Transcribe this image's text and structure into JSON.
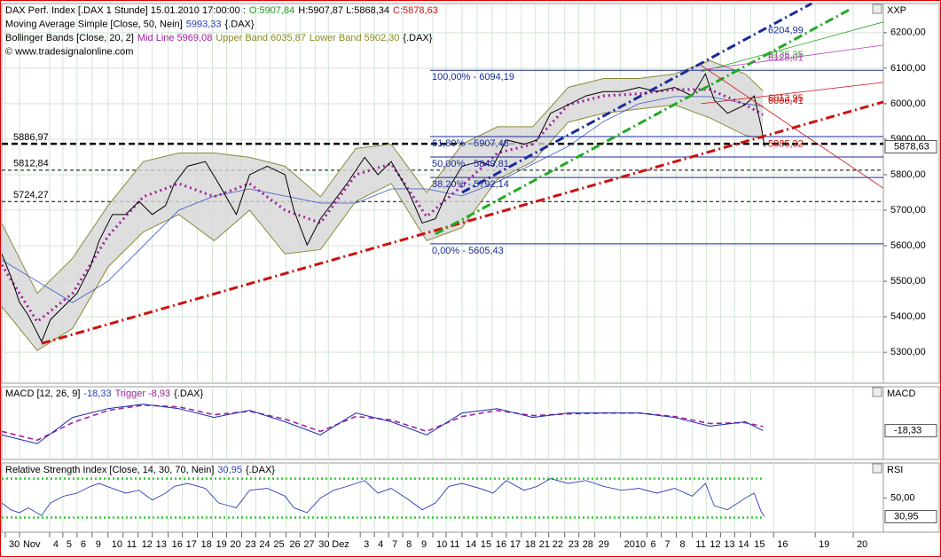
{
  "chart_data": [
    {
      "type": "line",
      "header": [
        [
          {
            "text": "DAX Perf. Index [.DAX  1 Stunde] 15.01.2010 17:00:00 :",
            "color": "#000000"
          },
          {
            "text": "O:5907,84",
            "color": "#1a9a1a"
          },
          {
            "text": "H:5907,87 L:5868,34",
            "color": "#000000"
          },
          {
            "text": "C:5878,63",
            "color": "#cc1111"
          }
        ],
        [
          {
            "text": "Moving Average Simple [Close, 50, Nein]",
            "color": "#000000"
          },
          {
            "text": "5993,33",
            "color": "#2a40b8"
          },
          {
            "text": "{.DAX}",
            "color": "#000000"
          }
        ],
        [
          {
            "text": "Bollinger Bands [Close, 20, 2]",
            "color": "#000000"
          },
          {
            "text": "Mid Line 5969,08",
            "color": "#a0209c"
          },
          {
            "text": "Upper Band 6035,87",
            "color": "#8a8a20"
          },
          {
            "text": "Lower Band 5902,30",
            "color": "#8a8a20"
          },
          {
            "text": "{.DAX}",
            "color": "#000000"
          }
        ],
        [
          {
            "text": "© www.tradesignalonline.com",
            "color": "#000000"
          }
        ]
      ],
      "axis_title": "XXP",
      "xlim": [
        0,
        996
      ],
      "ylim": [
        5213,
        6282
      ],
      "yticks": [
        {
          "value": 5300,
          "label": "5300,00"
        },
        {
          "value": 5400,
          "label": "5400,00"
        },
        {
          "value": 5500,
          "label": "5500,00"
        },
        {
          "value": 5600,
          "label": "5600,00"
        },
        {
          "value": 5700,
          "label": "5700,00"
        },
        {
          "value": 5800,
          "label": "5800,00"
        },
        {
          "value": 5900,
          "label": "5900,00"
        },
        {
          "value": 6000,
          "label": "6000,00"
        },
        {
          "value": 6100,
          "label": "6100,00"
        },
        {
          "value": 6200,
          "label": "6200,00"
        }
      ],
      "grid": true,
      "series": [
        {
          "style": "band",
          "color": "#8a8a3c",
          "fill": "#d6d6d6",
          "x": [
            0,
            40,
            80,
            120,
            160,
            200,
            240,
            280,
            320,
            360,
            400,
            440,
            480,
            520,
            560,
            600,
            640,
            680,
            720,
            760,
            800,
            840,
            860
          ],
          "upper": [
            5663,
            5466,
            5565,
            5713,
            5837,
            5861,
            5861,
            5849,
            5824,
            5738,
            5874,
            5886,
            5750,
            5886,
            5935,
            5935,
            6046,
            6071,
            6071,
            6084,
            6121,
            6084,
            6036
          ],
          "lower": [
            5429,
            5305,
            5367,
            5540,
            5639,
            5688,
            5614,
            5700,
            5577,
            5589,
            5725,
            5775,
            5614,
            5651,
            5787,
            5837,
            5948,
            5973,
            5985,
            5997,
            5960,
            5911,
            5902
          ]
        },
        {
          "style": "thin",
          "color": "#3a55c8",
          "x": [
            0,
            40,
            80,
            120,
            160,
            200,
            240,
            280,
            320,
            360,
            400,
            440,
            480,
            520,
            560,
            600,
            640,
            680,
            720,
            760,
            800,
            840,
            860
          ],
          "values": [
            5560,
            5500,
            5440,
            5500,
            5600,
            5700,
            5740,
            5760,
            5740,
            5720,
            5720,
            5760,
            5760,
            5740,
            5780,
            5830,
            5880,
            5950,
            6000,
            6020,
            6020,
            6000,
            5993
          ]
        },
        {
          "style": "dotted",
          "color": "#a0209c",
          "x": [
            0,
            40,
            80,
            120,
            160,
            200,
            240,
            280,
            320,
            360,
            400,
            440,
            480,
            520,
            560,
            600,
            640,
            680,
            720,
            760,
            800,
            840,
            860
          ],
          "values": [
            5546,
            5386,
            5466,
            5627,
            5738,
            5775,
            5738,
            5775,
            5700,
            5664,
            5800,
            5831,
            5682,
            5769,
            5861,
            5886,
            5997,
            6022,
            6028,
            6040,
            6040,
            5997,
            5969
          ]
        },
        {
          "style": "solid",
          "color": "#000000",
          "last_label": "5878,63",
          "x": [
            0,
            10,
            20,
            30,
            45,
            55,
            70,
            85,
            100,
            110,
            125,
            140,
            155,
            170,
            185,
            195,
            210,
            230,
            245,
            265,
            280,
            300,
            320,
            330,
            345,
            360,
            375,
            390,
            410,
            425,
            440,
            460,
            475,
            490,
            505,
            520,
            540,
            555,
            570,
            590,
            605,
            620,
            640,
            660,
            680,
            700,
            720,
            740,
            760,
            780,
            795,
            805,
            820,
            840,
            850,
            858,
            862
          ],
          "values": [
            5577,
            5515,
            5441,
            5404,
            5330,
            5392,
            5429,
            5466,
            5540,
            5614,
            5688,
            5688,
            5725,
            5688,
            5713,
            5775,
            5824,
            5837,
            5775,
            5688,
            5800,
            5824,
            5800,
            5700,
            5602,
            5676,
            5725,
            5775,
            5849,
            5800,
            5837,
            5750,
            5664,
            5676,
            5762,
            5824,
            5837,
            5824,
            5898,
            5886,
            5898,
            5973,
            5997,
            6022,
            6034,
            6034,
            6046,
            6034,
            6046,
            6022,
            6084,
            6010,
            5973,
            5997,
            6022,
            5935,
            5878.63
          ]
        }
      ],
      "levels": [
        {
          "value": 5886.97,
          "label": "5886,97",
          "style": "thick"
        },
        {
          "value": 5812.84,
          "label": "5812,84",
          "style": "thin"
        },
        {
          "value": 5724.27,
          "label": "5724,27",
          "style": "thin"
        }
      ],
      "fibonacci": {
        "x": [
          484,
          996
        ],
        "color": "#1a2b9c",
        "levels": [
          {
            "value": 6094.19,
            "label": "100,00% - 6094,19"
          },
          {
            "value": 5907.48,
            "label": "61,80% - 5907,48"
          },
          {
            "value": 5849.81,
            "label": "50,00% - 5849,81"
          },
          {
            "value": 5792.14,
            "label": "38,20% - 5792,14"
          },
          {
            "value": 5605.43,
            "label": "0,00% - 5605,43"
          }
        ]
      },
      "trendlines": [
        {
          "color": "#cc1111",
          "style": "thick",
          "x": [
            45,
            996
          ],
          "values": [
            5325,
            6005
          ]
        },
        {
          "color": "#22aa22",
          "style": "thick",
          "x": [
            490,
            960
          ],
          "values": [
            5633,
            6268
          ]
        },
        {
          "color": "#1a2b9c",
          "style": "thick",
          "x": [
            520,
            915
          ],
          "values": [
            5750,
            6282
          ]
        },
        {
          "color": "#22aa22",
          "style": "thin",
          "x": [
            790,
            996
          ],
          "values": [
            6090,
            6230
          ]
        },
        {
          "color": "#c040c0",
          "style": "thin",
          "x": [
            790,
            996
          ],
          "values": [
            6095,
            6165
          ]
        },
        {
          "color": "#cc1111",
          "style": "plain",
          "x": [
            790,
            996
          ],
          "values": [
            6108,
            5762
          ]
        },
        {
          "color": "#cc1111",
          "style": "thin",
          "x": [
            790,
            996
          ],
          "values": [
            6000,
            6060
          ]
        }
      ],
      "annotations": [
        {
          "value": 6204.99,
          "label": "6204,99",
          "color": "#1a2b9c"
        },
        {
          "value": 6136.35,
          "label": "6136,35",
          "color": "#22aa22"
        },
        {
          "value": 6128.01,
          "label": "6128,01",
          "color": "#c040c0"
        },
        {
          "value": 6013.95,
          "label": "6013,95",
          "color": "#cc1111"
        },
        {
          "value": 6006.41,
          "label": "6006,41",
          "color": "#cc1111"
        },
        {
          "value": 5885.32,
          "label": "5885,32",
          "color": "#cc1111"
        }
      ]
    },
    {
      "type": "line",
      "header": [
        [
          {
            "text": "MACD [12, 26, 9]",
            "color": "#000000"
          },
          {
            "text": "-18,33",
            "color": "#2a40b8"
          },
          {
            "text": "Trigger -8,93",
            "color": "#a0209c"
          },
          {
            "text": "{.DAX}",
            "color": "#000000"
          }
        ]
      ],
      "axis_title": "MACD",
      "xlim": [
        0,
        996
      ],
      "ylim": [
        -84,
        82
      ],
      "series": [
        {
          "style": "dashed",
          "color": "#a0209c",
          "x": [
            0,
            40,
            80,
            120,
            160,
            200,
            240,
            280,
            320,
            360,
            400,
            440,
            480,
            520,
            560,
            600,
            640,
            680,
            720,
            760,
            800,
            840,
            860
          ],
          "values": [
            -20,
            -40,
            0,
            28,
            40,
            36,
            18,
            26,
            8,
            -20,
            14,
            6,
            -20,
            14,
            28,
            16,
            20,
            22,
            22,
            14,
            -2,
            0,
            -8.93
          ]
        },
        {
          "style": "solid",
          "color": "#1a2bb0",
          "last_label": "-18,33",
          "x": [
            0,
            40,
            80,
            120,
            160,
            200,
            240,
            280,
            320,
            360,
            400,
            440,
            480,
            520,
            560,
            600,
            640,
            680,
            720,
            760,
            800,
            840,
            860
          ],
          "values": [
            -28,
            -48,
            12,
            32,
            42,
            32,
            12,
            28,
            2,
            -28,
            22,
            2,
            -28,
            22,
            32,
            12,
            22,
            22,
            22,
            12,
            -8,
            2,
            -18.33
          ]
        }
      ]
    },
    {
      "type": "line",
      "header": [
        [
          {
            "text": "Relative Strength Index [Close, 14, 30, 70, Nein]",
            "color": "#000000"
          },
          {
            "text": "30,95",
            "color": "#2a40b8"
          },
          {
            "text": "{.DAX}",
            "color": "#000000"
          }
        ]
      ],
      "axis_title": "RSI",
      "xlim": [
        0,
        996
      ],
      "ylim": [
        15,
        86
      ],
      "yticks": [
        {
          "value": 50,
          "label": "50,00"
        }
      ],
      "levels": [
        30,
        70
      ],
      "level_color": "#33cc33",
      "series": [
        {
          "style": "thin",
          "color": "#1a2bb0",
          "last_label": "30,95",
          "x": [
            0,
            10,
            20,
            30,
            45,
            55,
            70,
            85,
            100,
            110,
            125,
            140,
            155,
            170,
            185,
            195,
            210,
            230,
            245,
            265,
            280,
            300,
            320,
            330,
            345,
            360,
            375,
            390,
            410,
            425,
            440,
            460,
            475,
            490,
            505,
            520,
            540,
            555,
            570,
            590,
            605,
            620,
            640,
            660,
            680,
            700,
            720,
            740,
            760,
            780,
            795,
            805,
            820,
            840,
            850,
            858,
            862
          ],
          "values": [
            45,
            38,
            35,
            40,
            32,
            45,
            52,
            55,
            62,
            65,
            60,
            55,
            58,
            48,
            55,
            62,
            65,
            60,
            45,
            40,
            58,
            60,
            52,
            40,
            35,
            50,
            58,
            62,
            68,
            55,
            60,
            48,
            38,
            45,
            62,
            65,
            60,
            55,
            68,
            58,
            62,
            70,
            65,
            68,
            62,
            58,
            60,
            55,
            60,
            52,
            65,
            42,
            38,
            50,
            55,
            36,
            30.95
          ]
        }
      ],
      "xticks": [
        {
          "value": 4,
          "label": "30"
        },
        {
          "value": 20,
          "label": "Nov"
        },
        {
          "value": 54,
          "label": "4"
        },
        {
          "value": 69,
          "label": "5"
        },
        {
          "value": 85,
          "label": "6"
        },
        {
          "value": 102,
          "label": "9"
        },
        {
          "value": 120,
          "label": "10"
        },
        {
          "value": 137,
          "label": "11"
        },
        {
          "value": 154,
          "label": "12"
        },
        {
          "value": 170,
          "label": "13"
        },
        {
          "value": 188,
          "label": "16"
        },
        {
          "value": 204,
          "label": "17"
        },
        {
          "value": 221,
          "label": "18"
        },
        {
          "value": 238,
          "label": "19"
        },
        {
          "value": 254,
          "label": "20"
        },
        {
          "value": 271,
          "label": "23"
        },
        {
          "value": 287,
          "label": "24"
        },
        {
          "value": 303,
          "label": "25"
        },
        {
          "value": 321,
          "label": "26"
        },
        {
          "value": 337,
          "label": "27"
        },
        {
          "value": 354,
          "label": "30"
        },
        {
          "value": 369,
          "label": "Dez"
        },
        {
          "value": 405,
          "label": "3"
        },
        {
          "value": 421,
          "label": "4"
        },
        {
          "value": 437,
          "label": "7"
        },
        {
          "value": 453,
          "label": "8"
        },
        {
          "value": 470,
          "label": "9"
        },
        {
          "value": 487,
          "label": "10"
        },
        {
          "value": 502,
          "label": "11"
        },
        {
          "value": 520,
          "label": "14"
        },
        {
          "value": 537,
          "label": "15"
        },
        {
          "value": 554,
          "label": "16"
        },
        {
          "value": 570,
          "label": "17"
        },
        {
          "value": 587,
          "label": "18"
        },
        {
          "value": 603,
          "label": "21"
        },
        {
          "value": 618,
          "label": "22"
        },
        {
          "value": 636,
          "label": "23"
        },
        {
          "value": 652,
          "label": "28"
        },
        {
          "value": 670,
          "label": "29"
        },
        {
          "value": 699,
          "label": "2010"
        },
        {
          "value": 729,
          "label": "6"
        },
        {
          "value": 745,
          "label": "7"
        },
        {
          "value": 762,
          "label": "8"
        },
        {
          "value": 780,
          "label": "11"
        },
        {
          "value": 796,
          "label": "12"
        },
        {
          "value": 812,
          "label": "13"
        },
        {
          "value": 828,
          "label": "14"
        },
        {
          "value": 846,
          "label": "15"
        },
        {
          "value": 872,
          "label": "16"
        },
        {
          "value": 919,
          "label": "19"
        },
        {
          "value": 962,
          "label": "20"
        }
      ]
    }
  ]
}
